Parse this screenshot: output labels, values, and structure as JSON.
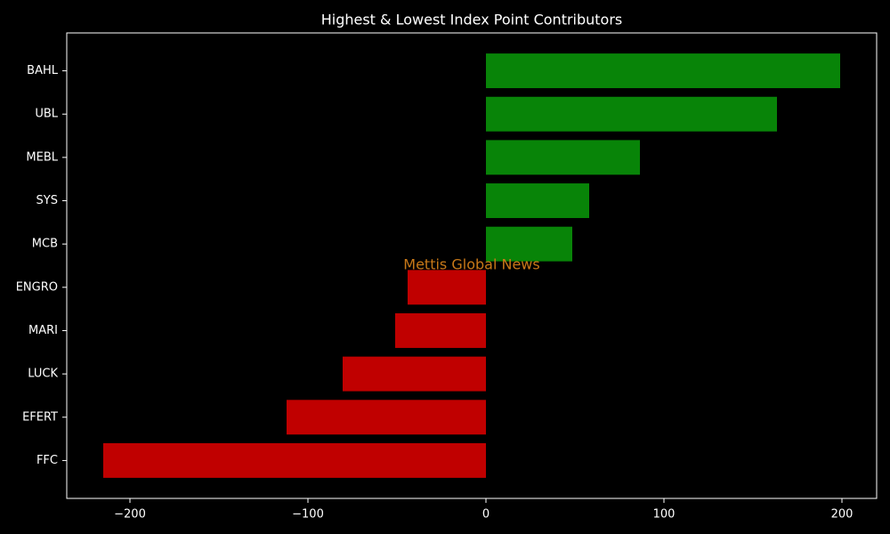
{
  "chart_data": {
    "type": "barh",
    "title": "Highest & Lowest Index Point Contributors",
    "categories": [
      "BAHL",
      "UBL",
      "MEBL",
      "SYS",
      "MCB",
      "ENGRO",
      "MARI",
      "LUCK",
      "EFERT",
      "FFC"
    ],
    "values": [
      199,
      163.5,
      86.5,
      58,
      48.5,
      -44,
      -51,
      -80.5,
      -112,
      -215
    ],
    "colors": [
      "#088408",
      "#088408",
      "#088408",
      "#088408",
      "#088408",
      "#c00000",
      "#c00000",
      "#c00000",
      "#c00000",
      "#c00000"
    ],
    "xlim": [
      -235.5,
      219.5
    ],
    "xticks": [
      {
        "value": -200,
        "label": "−200"
      },
      {
        "value": -100,
        "label": "−100"
      },
      0,
      100,
      200
    ],
    "annotation": "Mettis Global News"
  }
}
